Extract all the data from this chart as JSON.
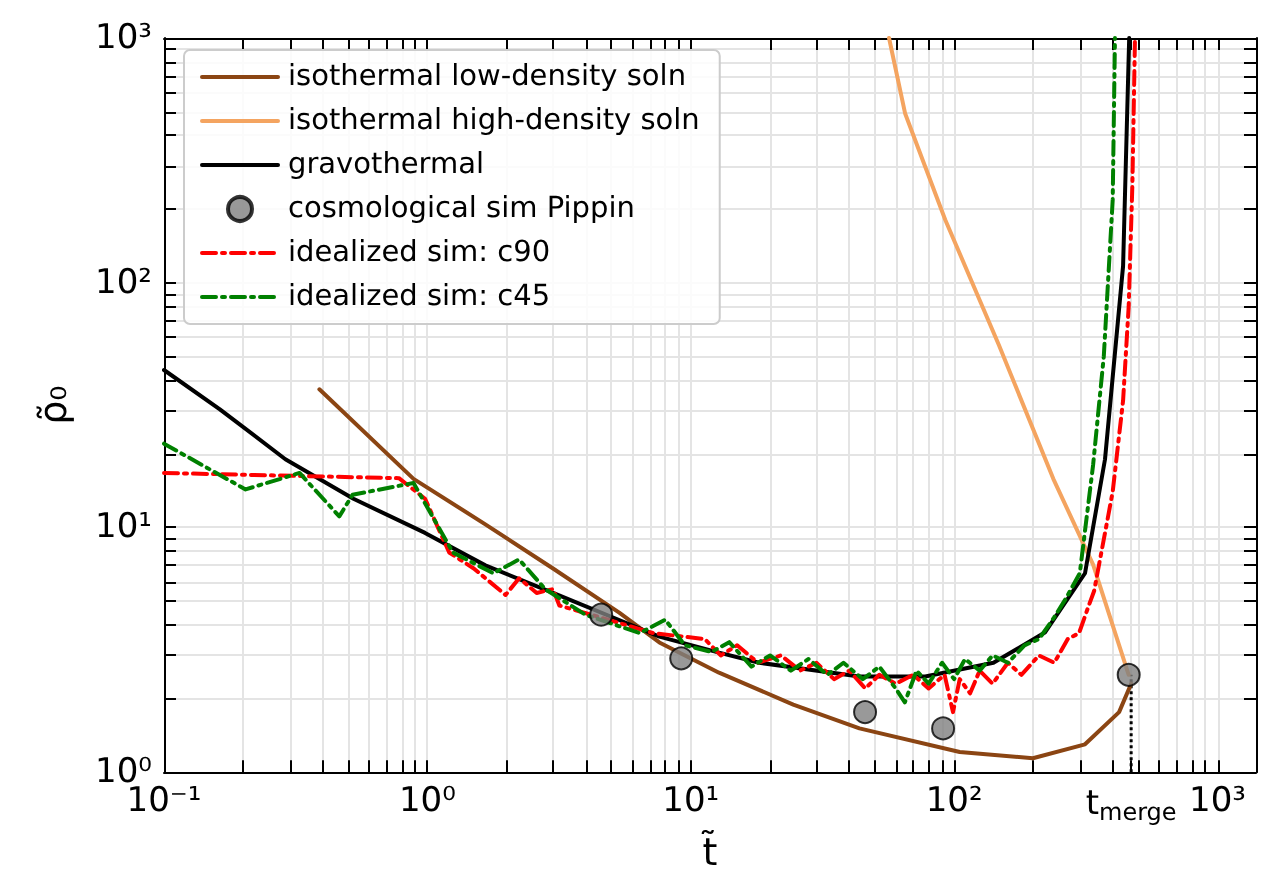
{
  "chart_data": {
    "type": "line",
    "xlabel": "t̃",
    "ylabel": "ρ̃₀",
    "log": "xy",
    "grid": true,
    "legend": "top left",
    "xlim": [
      0.1,
      1400
    ],
    "ylim": [
      1,
      1000
    ],
    "xticks": [
      {
        "value": 0.1,
        "label": "10⁻¹"
      },
      {
        "value": 0.2,
        "label": null
      },
      {
        "value": 0.3,
        "label": null
      },
      {
        "value": 0.4,
        "label": null
      },
      {
        "value": 0.5,
        "label": null
      },
      {
        "value": 0.6,
        "label": null
      },
      {
        "value": 0.7,
        "label": null
      },
      {
        "value": 0.8,
        "label": null
      },
      {
        "value": 0.9,
        "label": null
      },
      {
        "value": 1,
        "label": "10⁰"
      },
      {
        "value": 2,
        "label": null
      },
      {
        "value": 3,
        "label": null
      },
      {
        "value": 4,
        "label": null
      },
      {
        "value": 5,
        "label": null
      },
      {
        "value": 6,
        "label": null
      },
      {
        "value": 7,
        "label": null
      },
      {
        "value": 8,
        "label": null
      },
      {
        "value": 9,
        "label": null
      },
      {
        "value": 10,
        "label": "10¹"
      },
      {
        "value": 20,
        "label": null
      },
      {
        "value": 30,
        "label": null
      },
      {
        "value": 40,
        "label": null
      },
      {
        "value": 50,
        "label": null
      },
      {
        "value": 60,
        "label": null
      },
      {
        "value": 70,
        "label": null
      },
      {
        "value": 80,
        "label": null
      },
      {
        "value": 90,
        "label": null
      },
      {
        "value": 100,
        "label": "10²"
      },
      {
        "value": 200,
        "label": null
      },
      {
        "value": 300,
        "label": null
      },
      {
        "value": 400,
        "label": null
      },
      {
        "value": 470,
        "label": "t$_{merge}$"
      },
      {
        "value": 500,
        "label": null
      },
      {
        "value": 600,
        "label": null
      },
      {
        "value": 700,
        "label": null
      },
      {
        "value": 800,
        "label": null
      },
      {
        "value": 900,
        "label": null
      },
      {
        "value": 1000,
        "label": "10³"
      }
    ],
    "yticks": [
      {
        "value": 1,
        "label": "10⁰"
      },
      {
        "value": 2,
        "label": null
      },
      {
        "value": 3,
        "label": null
      },
      {
        "value": 4,
        "label": null
      },
      {
        "value": 5,
        "label": null
      },
      {
        "value": 6,
        "label": null
      },
      {
        "value": 7,
        "label": null
      },
      {
        "value": 8,
        "label": null
      },
      {
        "value": 9,
        "label": null
      },
      {
        "value": 10,
        "label": "10¹"
      },
      {
        "value": 20,
        "label": null
      },
      {
        "value": 30,
        "label": null
      },
      {
        "value": 40,
        "label": null
      },
      {
        "value": 50,
        "label": null
      },
      {
        "value": 60,
        "label": null
      },
      {
        "value": 70,
        "label": null
      },
      {
        "value": 80,
        "label": null
      },
      {
        "value": 90,
        "label": null
      },
      {
        "value": 100,
        "label": "10²"
      },
      {
        "value": 200,
        "label": null
      },
      {
        "value": 300,
        "label": null
      },
      {
        "value": 400,
        "label": null
      },
      {
        "value": 500,
        "label": null
      },
      {
        "value": 600,
        "label": null
      },
      {
        "value": 700,
        "label": null
      },
      {
        "value": 800,
        "label": null
      },
      {
        "value": 900,
        "label": null
      },
      {
        "value": 1000,
        "label": "10³"
      }
    ],
    "ref_lines": [
      {
        "axis": "x",
        "value": 470,
        "color": "#000000",
        "line_style": "dotted"
      }
    ],
    "series": [
      {
        "name": "isothermal low-density soln",
        "color": "#8b4513",
        "line_style": "solid",
        "marker": "none",
        "x": [
          0.389,
          0.886,
          1.66,
          3.0,
          5.35,
          7.6,
          12.8,
          24.5,
          43.7,
          105,
          199,
          314,
          423,
          470
        ],
        "values": [
          36.7,
          15.8,
          10.3,
          6.8,
          4.49,
          3.39,
          2.55,
          1.89,
          1.51,
          1.21,
          1.14,
          1.3,
          1.76,
          2.3
        ]
      },
      {
        "name": "isothermal high-density soln",
        "color": "#f4a460",
        "line_style": "solid",
        "marker": "none",
        "x": [
          56.6,
          65.2,
          92.5,
          148,
          238,
          337,
          460
        ],
        "values": [
          1000,
          490,
          181,
          55.5,
          15.8,
          7.05,
          2.5
        ]
      },
      {
        "name": "gravothermal",
        "color": "#000000",
        "line_style": "solid",
        "marker": "none",
        "x": [
          0.1,
          0.163,
          0.289,
          0.524,
          0.98,
          1.66,
          3.0,
          5.64,
          7.6,
          12.8,
          18.2,
          43.7,
          77.7,
          141,
          221,
          314,
          374,
          438,
          462
        ],
        "values": [
          44,
          30.4,
          19.0,
          13.1,
          9.5,
          7.0,
          5.4,
          4.09,
          3.58,
          3.08,
          2.8,
          2.46,
          2.46,
          2.8,
          3.72,
          6.5,
          19,
          117,
          1000
        ]
      },
      {
        "name": "cosmological sim Pippin",
        "type": "scatter",
        "color": "#808080",
        "marker": "circle",
        "x": [
          4.57,
          9.2,
          45.9,
          90.8,
          460
        ],
        "values": [
          4.4,
          2.92,
          1.76,
          1.51,
          2.5
        ]
      },
      {
        "name": "idealized sim: c90",
        "color": "#ff0000",
        "line_style": "dashdot",
        "marker": "none",
        "x": [
          0.1,
          0.78,
          0.98,
          1.21,
          1.5,
          1.98,
          2.23,
          2.6,
          3.0,
          3.17,
          4.5,
          7.2,
          11.3,
          13,
          15,
          18,
          22,
          26,
          30,
          35,
          40,
          46,
          52,
          60,
          70,
          80,
          92,
          99,
          105,
          115,
          125,
          140,
          160,
          180,
          210,
          240,
          270,
          298,
          320,
          340,
          374,
          400,
          438,
          460,
          475,
          486
        ],
        "values": [
          16.7,
          15.9,
          13.1,
          7.9,
          6.8,
          5.3,
          6.2,
          5.4,
          5.6,
          4.8,
          4.3,
          3.7,
          3.5,
          3.0,
          3.3,
          2.8,
          3.0,
          2.6,
          2.8,
          2.4,
          2.6,
          2.2,
          2.5,
          2.3,
          2.5,
          2.2,
          2.5,
          1.76,
          2.4,
          2.1,
          2.6,
          2.3,
          2.8,
          2.5,
          3.0,
          2.8,
          3.5,
          3.7,
          4.6,
          5.5,
          9.5,
          14,
          33,
          80,
          250,
          1000
        ]
      },
      {
        "name": "idealized sim: c45",
        "color": "#008000",
        "line_style": "dashdot",
        "marker": "none",
        "x": [
          0.1,
          0.204,
          0.327,
          0.463,
          0.52,
          0.886,
          1.25,
          1.78,
          2.23,
          2.8,
          3.98,
          6.4,
          8.0,
          9.5,
          12,
          14,
          17,
          20,
          24,
          28,
          33,
          38,
          45,
          52,
          60,
          65,
          72,
          80,
          90,
          100,
          110,
          125,
          140,
          160,
          185,
          210,
          240,
          265,
          300,
          337,
          370,
          400,
          408
        ],
        "values": [
          22,
          14.3,
          16.7,
          11.1,
          13.6,
          15.2,
          7.9,
          6.5,
          7.4,
          5.6,
          4.4,
          3.7,
          4.2,
          3.3,
          3.1,
          3.4,
          2.7,
          3.0,
          2.6,
          2.9,
          2.5,
          2.8,
          2.4,
          2.7,
          2.2,
          1.93,
          2.6,
          2.3,
          2.8,
          2.4,
          2.9,
          2.6,
          3.0,
          2.8,
          3.3,
          3.5,
          4.3,
          5.1,
          6.5,
          18,
          50,
          218,
          1000
        ]
      }
    ]
  }
}
